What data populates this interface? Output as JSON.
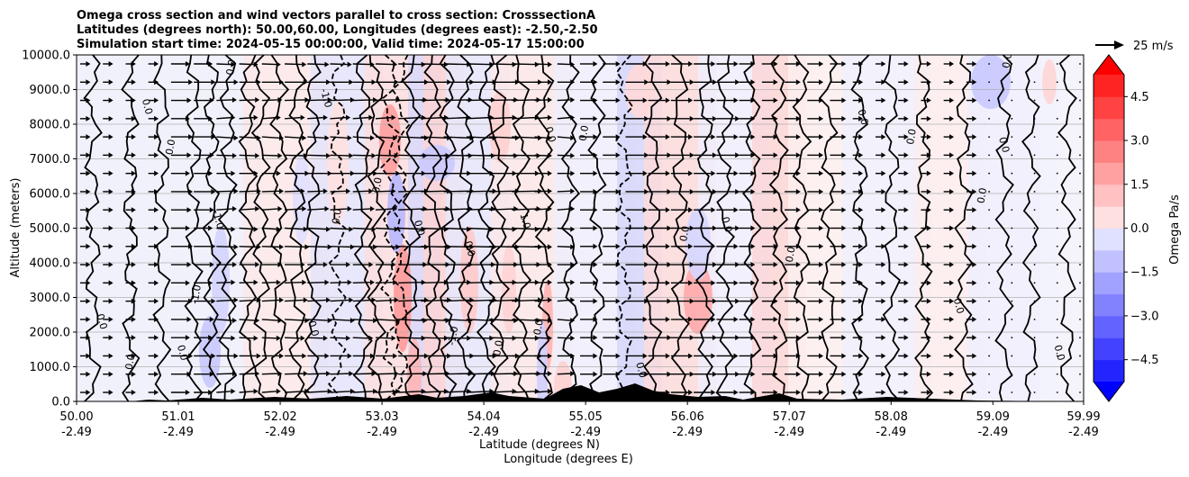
{
  "chart_data": {
    "type": "heatmap",
    "title_lines": [
      "Omega cross section and wind vectors parallel to cross section: CrosssectionA",
      "Latitudes (degrees north): 50.00,60.00, Longitudes (degrees east): -2.50,-2.50",
      "Simulation start time: 2024-05-15 00:00:00, Valid time: 2024-05-17 15:00:00"
    ],
    "ylabel": "Altitude (meters)",
    "xlabel_lat": "Latitude (degrees N)",
    "xlabel_lon": "Longitude (degrees E)",
    "ylim": [
      0,
      10000
    ],
    "xlim": [
      50.0,
      59.99
    ],
    "y_ticks": [
      0,
      1000,
      2000,
      3000,
      4000,
      5000,
      6000,
      7000,
      8000,
      9000,
      10000
    ],
    "y_tick_labels": [
      "0.0",
      "1000.0",
      "2000.0",
      "3000.0",
      "4000.0",
      "5000.0",
      "6000.0",
      "7000.0",
      "8000.0",
      "9000.0",
      "10000.0"
    ],
    "x_ticks": [
      {
        "value": 50.0,
        "lat": "50.00",
        "lon": "-2.49"
      },
      {
        "value": 51.01,
        "lat": "51.01",
        "lon": "-2.49"
      },
      {
        "value": 52.02,
        "lat": "52.02",
        "lon": "-2.49"
      },
      {
        "value": 53.03,
        "lat": "53.03",
        "lon": "-2.49"
      },
      {
        "value": 54.04,
        "lat": "54.04",
        "lon": "-2.49"
      },
      {
        "value": 55.05,
        "lat": "55.05",
        "lon": "-2.49"
      },
      {
        "value": 56.06,
        "lat": "56.06",
        "lon": "-2.49"
      },
      {
        "value": 57.07,
        "lat": "57.07",
        "lon": "-2.49"
      },
      {
        "value": 58.08,
        "lat": "58.08",
        "lon": "-2.49"
      },
      {
        "value": 59.09,
        "lat": "59.09",
        "lon": "-2.49"
      },
      {
        "value": 59.99,
        "lat": "59.99",
        "lon": "-2.49"
      }
    ],
    "colorbar": {
      "label": "Omega Pa/s",
      "range": [
        -5.25,
        5.25
      ],
      "tick_values": [
        4.5,
        3.0,
        1.5,
        0.0,
        -1.5,
        -3.0,
        -4.5
      ],
      "tick_labels": [
        "4.5",
        "3.0",
        "1.5",
        "0.0",
        "−1.5",
        "−3.0",
        "−4.5"
      ],
      "levels": 14,
      "extend": "both"
    },
    "quiver_key": {
      "label": "25 m/s",
      "speed": 25
    },
    "contour_labels": [
      {
        "lat": 50.2,
        "alt": 2500,
        "text": "0.0"
      },
      {
        "lat": 50.55,
        "alt": 900,
        "text": "0.0"
      },
      {
        "lat": 50.65,
        "alt": 8700,
        "text": "0.0"
      },
      {
        "lat": 50.95,
        "alt": 7100,
        "text": "0.0"
      },
      {
        "lat": 51.0,
        "alt": 1600,
        "text": "0.0"
      },
      {
        "lat": 51.2,
        "alt": 2800,
        "text": "-1.0"
      },
      {
        "lat": 51.35,
        "alt": 5500,
        "text": "-1.0"
      },
      {
        "lat": 51.55,
        "alt": 9400,
        "text": "0.0"
      },
      {
        "lat": 52.3,
        "alt": 2300,
        "text": "0.0"
      },
      {
        "lat": 52.6,
        "alt": 5100,
        "text": "0.0"
      },
      {
        "lat": 52.42,
        "alt": 9000,
        "text": "-1.0"
      },
      {
        "lat": 53.0,
        "alt": 6000,
        "text": "0.0"
      },
      {
        "lat": 53.35,
        "alt": 5200,
        "text": "0.0"
      },
      {
        "lat": 53.75,
        "alt": 1600,
        "text": "-1.0"
      },
      {
        "lat": 53.85,
        "alt": 4600,
        "text": "0.0"
      },
      {
        "lat": 54.2,
        "alt": 1300,
        "text": "0.0"
      },
      {
        "lat": 54.4,
        "alt": 5400,
        "text": "1.0"
      },
      {
        "lat": 54.6,
        "alt": 1900,
        "text": "0.0"
      },
      {
        "lat": 54.65,
        "alt": 7900,
        "text": "0.0"
      },
      {
        "lat": 55.05,
        "alt": 7500,
        "text": "0.0"
      },
      {
        "lat": 55.55,
        "alt": 1100,
        "text": "0.0"
      },
      {
        "lat": 56.05,
        "alt": 4600,
        "text": "0.0"
      },
      {
        "lat": 56.4,
        "alt": 5300,
        "text": "0.0"
      },
      {
        "lat": 57.1,
        "alt": 4000,
        "text": "0.0"
      },
      {
        "lat": 57.75,
        "alt": 8400,
        "text": "0.0"
      },
      {
        "lat": 58.3,
        "alt": 7400,
        "text": "0.0"
      },
      {
        "lat": 58.7,
        "alt": 2950,
        "text": "0.0"
      },
      {
        "lat": 59.0,
        "alt": 5700,
        "text": "0.0"
      },
      {
        "lat": 59.15,
        "alt": 7600,
        "text": "0.0"
      },
      {
        "lat": 59.25,
        "alt": 9600,
        "text": "0.0"
      },
      {
        "lat": 59.7,
        "alt": 1600,
        "text": "0.0"
      }
    ]
  }
}
